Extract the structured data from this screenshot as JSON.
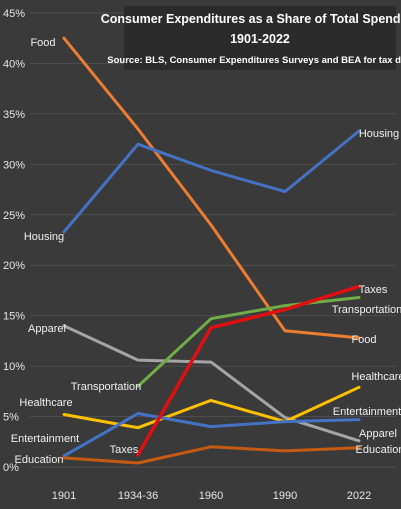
{
  "chart_data": {
    "type": "line",
    "title": "Consumer Expenditures as a Share of Total Spending",
    "subtitle": "1901-2022",
    "source": "Source: BLS, Consumer Expenditures Surveys and BEA for tax data",
    "categories": [
      "1901",
      "1934-36",
      "1960",
      "1990",
      "2022"
    ],
    "ylim": [
      0,
      45
    ],
    "yticks": [
      0,
      5,
      10,
      15,
      20,
      25,
      30,
      35,
      40,
      45
    ],
    "ytick_labels": [
      "0%",
      "5%",
      "10%",
      "15%",
      "20%",
      "25%",
      "30%",
      "35%",
      "40%",
      "45%"
    ],
    "grid": true,
    "series": [
      {
        "name": "Food",
        "color": "#ed7d31",
        "values": [
          42.5,
          33.5,
          24.0,
          13.5,
          12.8
        ]
      },
      {
        "name": "Housing",
        "color": "#4472c4",
        "values": [
          23.3,
          32.0,
          29.4,
          27.3,
          33.3
        ]
      },
      {
        "name": "Apparel",
        "color": "#a5a5a5",
        "values": [
          14.0,
          10.6,
          10.4,
          4.9,
          2.6
        ]
      },
      {
        "name": "Healthcare",
        "color": "#ffc000",
        "values": [
          5.2,
          3.9,
          6.6,
          4.5,
          7.9
        ]
      },
      {
        "name": "Entertainment",
        "color": "#4472c4",
        "values": [
          1.1,
          5.3,
          4.0,
          4.5,
          4.7
        ]
      },
      {
        "name": "Education",
        "color": "#c55a11",
        "values": [
          0.9,
          0.4,
          2.0,
          1.6,
          1.9
        ]
      },
      {
        "name": "Transportation",
        "color": "#70ad47",
        "values": [
          null,
          8.0,
          14.7,
          16.0,
          16.8
        ]
      },
      {
        "name": "Taxes",
        "color": "#e01010",
        "values": [
          null,
          1.2,
          13.8,
          15.6,
          17.9
        ]
      }
    ]
  }
}
